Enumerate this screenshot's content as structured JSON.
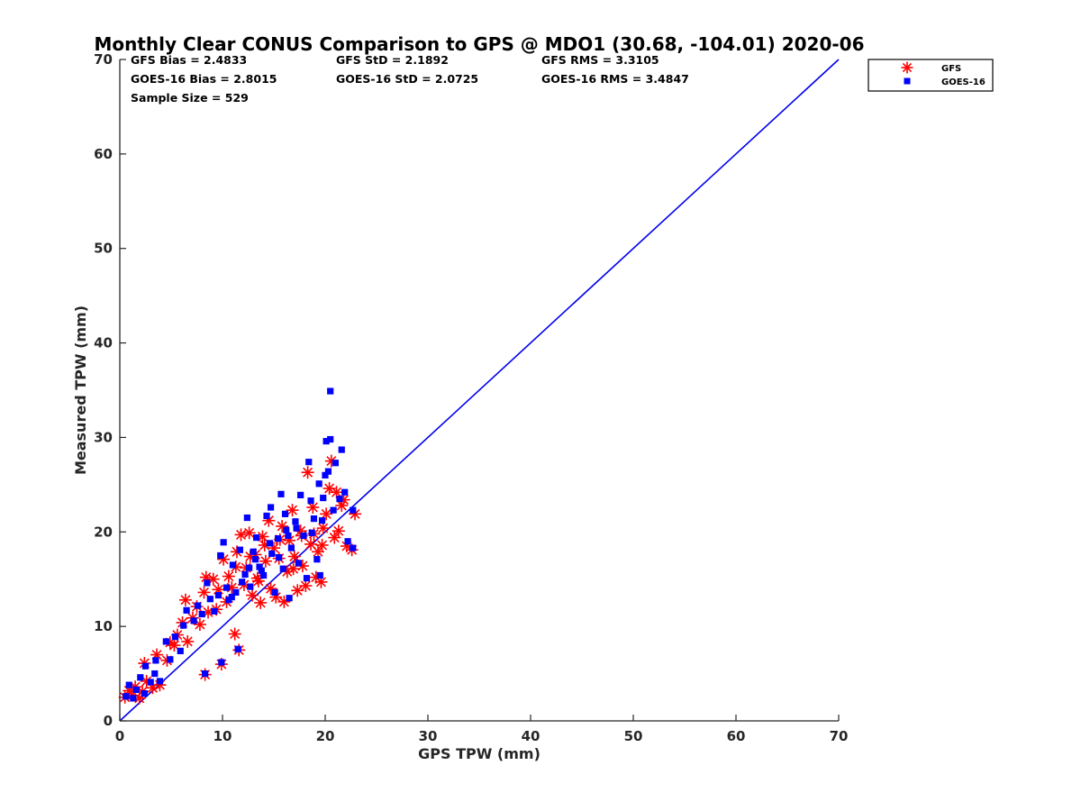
{
  "chart_data": {
    "type": "scatter",
    "title": "Monthly Clear CONUS Comparison to GPS @ MDO1 (30.68, -104.01) 2020-06",
    "xlabel": "GPS TPW (mm)",
    "ylabel": "Measured TPW (mm)",
    "xlim": [
      0,
      70
    ],
    "ylim": [
      0,
      70
    ],
    "xticks": [
      0,
      10,
      20,
      30,
      40,
      50,
      60,
      70
    ],
    "yticks": [
      0,
      10,
      20,
      30,
      40,
      50,
      60,
      70
    ],
    "grid": false,
    "legend_position": "top-right",
    "stats": [
      [
        "GFS Bias = 2.4833",
        "GFS StD = 2.1892",
        "GFS RMS = 3.3105"
      ],
      [
        "GOES-16 Bias = 2.8015",
        "GOES-16 StD = 2.0725",
        "GOES-16 RMS = 3.4847"
      ],
      [
        "Sample Size = 529"
      ]
    ],
    "reference_line": {
      "x": [
        0,
        70
      ],
      "y": [
        0,
        70
      ]
    },
    "series": [
      {
        "name": "GFS",
        "marker": "asterisk",
        "color": "#ff0000",
        "points": [
          [
            0.5,
            2.5
          ],
          [
            0.9,
            3.2
          ],
          [
            1.2,
            2.7
          ],
          [
            1.5,
            3.6
          ],
          [
            1.9,
            2.4
          ],
          [
            2.2,
            3.1
          ],
          [
            2.6,
            4.2
          ],
          [
            2.4,
            6.1
          ],
          [
            3.2,
            3.5
          ],
          [
            3.6,
            7.0
          ],
          [
            3.9,
            3.8
          ],
          [
            4.6,
            6.4
          ],
          [
            4.9,
            8.3
          ],
          [
            5.3,
            8.0
          ],
          [
            5.6,
            9.1
          ],
          [
            6.1,
            10.4
          ],
          [
            6.4,
            12.8
          ],
          [
            6.6,
            8.4
          ],
          [
            7.1,
            10.9
          ],
          [
            7.5,
            12.1
          ],
          [
            7.8,
            10.2
          ],
          [
            8.2,
            13.6
          ],
          [
            8.4,
            15.2
          ],
          [
            8.6,
            11.5
          ],
          [
            8.3,
            4.9
          ],
          [
            9.1,
            15.0
          ],
          [
            9.4,
            11.8
          ],
          [
            9.6,
            13.9
          ],
          [
            9.9,
            6.0
          ],
          [
            10.1,
            17.1
          ],
          [
            10.4,
            12.6
          ],
          [
            10.6,
            15.3
          ],
          [
            10.9,
            14.1
          ],
          [
            11.2,
            9.2
          ],
          [
            11.4,
            17.9
          ],
          [
            11.6,
            7.5
          ],
          [
            11.8,
            19.7
          ],
          [
            12.1,
            14.4
          ],
          [
            12.3,
            16.2
          ],
          [
            12.6,
            19.9
          ],
          [
            12.9,
            13.3
          ],
          [
            13.2,
            17.6
          ],
          [
            13.4,
            15.1
          ],
          [
            13.7,
            12.5
          ],
          [
            13.9,
            19.5
          ],
          [
            14.2,
            16.9
          ],
          [
            14.5,
            21.2
          ],
          [
            14.7,
            14.0
          ],
          [
            15.0,
            18.3
          ],
          [
            15.2,
            13.1
          ],
          [
            15.5,
            17.2
          ],
          [
            15.8,
            20.6
          ],
          [
            16.0,
            12.6
          ],
          [
            16.3,
            15.8
          ],
          [
            16.5,
            19.1
          ],
          [
            16.8,
            22.3
          ],
          [
            17.0,
            17.4
          ],
          [
            17.3,
            13.8
          ],
          [
            17.6,
            20.1
          ],
          [
            17.8,
            16.4
          ],
          [
            18.1,
            14.3
          ],
          [
            18.3,
            26.3
          ],
          [
            18.6,
            18.7
          ],
          [
            18.8,
            22.6
          ],
          [
            19.1,
            15.2
          ],
          [
            19.3,
            17.9
          ],
          [
            19.6,
            14.7
          ],
          [
            19.8,
            20.4
          ],
          [
            20.1,
            21.9
          ],
          [
            20.4,
            24.6
          ],
          [
            20.6,
            27.5
          ],
          [
            20.9,
            19.4
          ],
          [
            21.1,
            24.2
          ],
          [
            21.3,
            20.1
          ],
          [
            21.6,
            22.8
          ],
          [
            21.8,
            23.4
          ],
          [
            22.1,
            18.5
          ],
          [
            22.6,
            18.1
          ],
          [
            22.9,
            21.9
          ],
          [
            14.1,
            18.6
          ],
          [
            15.6,
            19.2
          ],
          [
            12.7,
            17.4
          ],
          [
            16.9,
            16.1
          ],
          [
            13.5,
            14.8
          ],
          [
            17.7,
            19.6
          ],
          [
            11.3,
            16.3
          ],
          [
            18.9,
            19.8
          ],
          [
            19.7,
            18.6
          ]
        ]
      },
      {
        "name": "GOES-16",
        "marker": "square",
        "color": "#0000ff",
        "points": [
          [
            0.6,
            2.6
          ],
          [
            0.9,
            3.8
          ],
          [
            1.3,
            2.4
          ],
          [
            1.6,
            3.3
          ],
          [
            2.0,
            4.6
          ],
          [
            2.4,
            2.9
          ],
          [
            2.5,
            5.8
          ],
          [
            3.0,
            4.1
          ],
          [
            3.4,
            5.0
          ],
          [
            3.5,
            6.4
          ],
          [
            3.9,
            4.2
          ],
          [
            4.5,
            8.4
          ],
          [
            4.9,
            6.5
          ],
          [
            5.4,
            8.9
          ],
          [
            5.9,
            7.4
          ],
          [
            6.2,
            10.1
          ],
          [
            6.5,
            11.7
          ],
          [
            7.2,
            10.6
          ],
          [
            7.6,
            12.2
          ],
          [
            8.0,
            11.3
          ],
          [
            8.3,
            5.0
          ],
          [
            8.5,
            14.6
          ],
          [
            8.8,
            12.9
          ],
          [
            9.2,
            11.6
          ],
          [
            9.6,
            13.3
          ],
          [
            9.9,
            6.2
          ],
          [
            9.8,
            17.5
          ],
          [
            10.1,
            18.9
          ],
          [
            10.4,
            14.1
          ],
          [
            10.6,
            12.8
          ],
          [
            11.0,
            16.5
          ],
          [
            11.3,
            13.6
          ],
          [
            11.5,
            7.6
          ],
          [
            11.7,
            18.1
          ],
          [
            12.2,
            15.5
          ],
          [
            12.4,
            21.5
          ],
          [
            12.7,
            14.2
          ],
          [
            13.0,
            17.9
          ],
          [
            13.3,
            19.4
          ],
          [
            13.6,
            16.3
          ],
          [
            14.0,
            15.4
          ],
          [
            14.3,
            21.7
          ],
          [
            14.7,
            22.6
          ],
          [
            14.8,
            17.7
          ],
          [
            15.1,
            13.6
          ],
          [
            15.4,
            19.3
          ],
          [
            15.7,
            24.0
          ],
          [
            15.9,
            16.1
          ],
          [
            16.2,
            20.2
          ],
          [
            16.5,
            13.0
          ],
          [
            16.7,
            18.3
          ],
          [
            17.1,
            21.1
          ],
          [
            17.4,
            16.7
          ],
          [
            17.6,
            23.9
          ],
          [
            17.9,
            19.6
          ],
          [
            18.2,
            15.1
          ],
          [
            18.4,
            27.4
          ],
          [
            18.6,
            23.3
          ],
          [
            18.9,
            21.4
          ],
          [
            19.2,
            17.1
          ],
          [
            19.4,
            25.1
          ],
          [
            19.5,
            15.4
          ],
          [
            19.8,
            23.6
          ],
          [
            20.0,
            26.0
          ],
          [
            20.1,
            29.6
          ],
          [
            20.3,
            26.4
          ],
          [
            20.5,
            34.9
          ],
          [
            20.5,
            29.8
          ],
          [
            20.8,
            22.3
          ],
          [
            21.0,
            27.3
          ],
          [
            21.4,
            23.5
          ],
          [
            21.6,
            28.7
          ],
          [
            21.9,
            24.2
          ],
          [
            22.2,
            19.0
          ],
          [
            22.7,
            22.3
          ],
          [
            22.7,
            18.3
          ],
          [
            13.2,
            17.1
          ],
          [
            14.6,
            18.8
          ],
          [
            16.4,
            19.6
          ],
          [
            12.6,
            16.2
          ],
          [
            17.2,
            20.4
          ],
          [
            15.5,
            17.3
          ],
          [
            18.7,
            19.9
          ],
          [
            11.9,
            14.7
          ],
          [
            19.7,
            21.2
          ],
          [
            10.9,
            13.1
          ],
          [
            16.1,
            21.9
          ],
          [
            13.8,
            15.9
          ]
        ]
      }
    ]
  }
}
